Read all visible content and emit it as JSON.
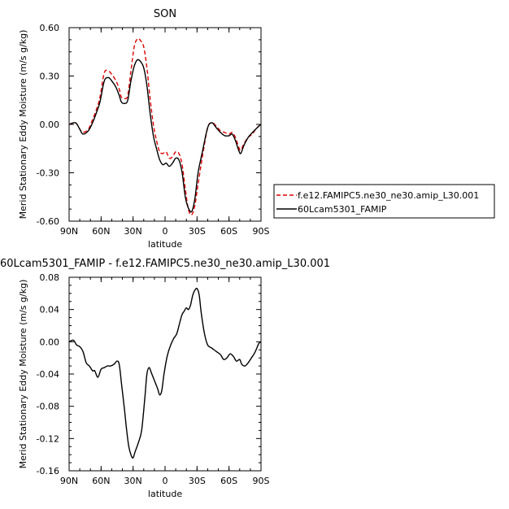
{
  "chart_data": [
    {
      "type": "line",
      "title": "SON",
      "xlabel": "latitude",
      "ylabel": "Merid Stationary Eddy Moisture (m/s g/kg)",
      "x_ticks": [
        "90N",
        "60N",
        "30N",
        "0",
        "30S",
        "60S",
        "90S"
      ],
      "y_ticks": [
        "0.60",
        "0.30",
        "0.00",
        "-0.30",
        "-0.60"
      ],
      "xlim": [
        90,
        -90
      ],
      "ylim": [
        -0.6,
        0.6
      ],
      "legend_position": "right",
      "series": [
        {
          "name": "f.e12.FAMIPC5.ne30_ne30.amip_L30.001",
          "color": "#dd0000",
          "dash": "dashed",
          "points": [
            [
              90,
              0.0
            ],
            [
              84,
              0.01
            ],
            [
              80,
              -0.03
            ],
            [
              77,
              -0.05
            ],
            [
              72,
              -0.03
            ],
            [
              68,
              0.03
            ],
            [
              64,
              0.1
            ],
            [
              61,
              0.17
            ],
            [
              57,
              0.32
            ],
            [
              53,
              0.33
            ],
            [
              50,
              0.31
            ],
            [
              46,
              0.27
            ],
            [
              43,
              0.22
            ],
            [
              41,
              0.17
            ],
            [
              38,
              0.16
            ],
            [
              35,
              0.18
            ],
            [
              32,
              0.33
            ],
            [
              29,
              0.48
            ],
            [
              26,
              0.53
            ],
            [
              23,
              0.52
            ],
            [
              20,
              0.48
            ],
            [
              17,
              0.35
            ],
            [
              14,
              0.16
            ],
            [
              11,
              0.0
            ],
            [
              8,
              -0.1
            ],
            [
              5,
              -0.17
            ],
            [
              2,
              -0.18
            ],
            [
              -1,
              -0.17
            ],
            [
              -4,
              -0.21
            ],
            [
              -7,
              -0.2
            ],
            [
              -10,
              -0.17
            ],
            [
              -13,
              -0.18
            ],
            [
              -16,
              -0.25
            ],
            [
              -19,
              -0.4
            ],
            [
              -22,
              -0.53
            ],
            [
              -25,
              -0.56
            ],
            [
              -28,
              -0.5
            ],
            [
              -31,
              -0.37
            ],
            [
              -35,
              -0.2
            ],
            [
              -40,
              -0.02
            ],
            [
              -44,
              0.01
            ],
            [
              -48,
              -0.01
            ],
            [
              -52,
              -0.04
            ],
            [
              -56,
              -0.05
            ],
            [
              -60,
              -0.06
            ],
            [
              -63,
              -0.05
            ],
            [
              -66,
              -0.08
            ],
            [
              -69,
              -0.14
            ],
            [
              -71,
              -0.16
            ],
            [
              -74,
              -0.12
            ],
            [
              -78,
              -0.08
            ],
            [
              -82,
              -0.06
            ],
            [
              -85,
              -0.03
            ],
            [
              -88,
              -0.01
            ],
            [
              -90,
              0.0
            ]
          ]
        },
        {
          "name": "60Lcam5301_FAMIP",
          "color": "#000000",
          "dash": "solid",
          "points": [
            [
              90,
              0.0
            ],
            [
              84,
              0.01
            ],
            [
              80,
              -0.03
            ],
            [
              77,
              -0.06
            ],
            [
              72,
              -0.04
            ],
            [
              68,
              0.01
            ],
            [
              64,
              0.08
            ],
            [
              61,
              0.14
            ],
            [
              57,
              0.27
            ],
            [
              53,
              0.29
            ],
            [
              50,
              0.27
            ],
            [
              46,
              0.23
            ],
            [
              43,
              0.18
            ],
            [
              41,
              0.14
            ],
            [
              38,
              0.13
            ],
            [
              35,
              0.15
            ],
            [
              32,
              0.27
            ],
            [
              29,
              0.36
            ],
            [
              26,
              0.4
            ],
            [
              23,
              0.39
            ],
            [
              20,
              0.35
            ],
            [
              17,
              0.24
            ],
            [
              14,
              0.07
            ],
            [
              11,
              -0.07
            ],
            [
              8,
              -0.15
            ],
            [
              5,
              -0.22
            ],
            [
              2,
              -0.25
            ],
            [
              -1,
              -0.24
            ],
            [
              -4,
              -0.26
            ],
            [
              -7,
              -0.24
            ],
            [
              -10,
              -0.21
            ],
            [
              -13,
              -0.22
            ],
            [
              -16,
              -0.3
            ],
            [
              -19,
              -0.45
            ],
            [
              -22,
              -0.52
            ],
            [
              -25,
              -0.54
            ],
            [
              -28,
              -0.46
            ],
            [
              -31,
              -0.3
            ],
            [
              -35,
              -0.17
            ],
            [
              -40,
              -0.02
            ],
            [
              -44,
              0.01
            ],
            [
              -48,
              -0.02
            ],
            [
              -52,
              -0.05
            ],
            [
              -56,
              -0.07
            ],
            [
              -60,
              -0.07
            ],
            [
              -63,
              -0.06
            ],
            [
              -66,
              -0.1
            ],
            [
              -69,
              -0.16
            ],
            [
              -71,
              -0.18
            ],
            [
              -74,
              -0.13
            ],
            [
              -78,
              -0.08
            ],
            [
              -82,
              -0.05
            ],
            [
              -85,
              -0.03
            ],
            [
              -88,
              -0.01
            ],
            [
              -90,
              0.0
            ]
          ]
        }
      ]
    },
    {
      "type": "line",
      "title": "60Lcam5301_FAMIP - f.e12.FAMIPC5.ne30_ne30.amip_L30.001",
      "xlabel": "latitude",
      "ylabel": "Merid Stationary Eddy Moisture (m/s g/kg)",
      "x_ticks": [
        "90N",
        "60N",
        "30N",
        "0",
        "30S",
        "60S",
        "90S"
      ],
      "y_ticks": [
        "0.08",
        "0.04",
        "0.00",
        "-0.04",
        "-0.08",
        "-0.12",
        "-0.16"
      ],
      "xlim": [
        90,
        -90
      ],
      "ylim": [
        -0.16,
        0.08
      ],
      "series": [
        {
          "color": "#000000",
          "dash": "solid",
          "points": [
            [
              90,
              0.0
            ],
            [
              86,
              0.002
            ],
            [
              83,
              -0.004
            ],
            [
              80,
              -0.006
            ],
            [
              77,
              -0.012
            ],
            [
              74,
              -0.026
            ],
            [
              71,
              -0.03
            ],
            [
              68,
              -0.036
            ],
            [
              66,
              -0.036
            ],
            [
              63,
              -0.044
            ],
            [
              60,
              -0.034
            ],
            [
              57,
              -0.032
            ],
            [
              54,
              -0.03
            ],
            [
              51,
              -0.03
            ],
            [
              48,
              -0.028
            ],
            [
              45,
              -0.024
            ],
            [
              43,
              -0.028
            ],
            [
              41,
              -0.05
            ],
            [
              38,
              -0.085
            ],
            [
              36,
              -0.11
            ],
            [
              34,
              -0.13
            ],
            [
              32,
              -0.14
            ],
            [
              30,
              -0.144
            ],
            [
              28,
              -0.136
            ],
            [
              25,
              -0.125
            ],
            [
              22,
              -0.11
            ],
            [
              19,
              -0.07
            ],
            [
              17,
              -0.04
            ],
            [
              15,
              -0.032
            ],
            [
              13,
              -0.038
            ],
            [
              10,
              -0.048
            ],
            [
              7,
              -0.058
            ],
            [
              5,
              -0.066
            ],
            [
              3,
              -0.06
            ],
            [
              1,
              -0.04
            ],
            [
              -2,
              -0.018
            ],
            [
              -5,
              -0.005
            ],
            [
              -8,
              0.004
            ],
            [
              -11,
              0.01
            ],
            [
              -14,
              0.025
            ],
            [
              -16,
              0.034
            ],
            [
              -18,
              0.038
            ],
            [
              -20,
              0.042
            ],
            [
              -22,
              0.04
            ],
            [
              -24,
              0.046
            ],
            [
              -26,
              0.058
            ],
            [
              -28,
              0.064
            ],
            [
              -30,
              0.066
            ],
            [
              -32,
              0.058
            ],
            [
              -34,
              0.035
            ],
            [
              -37,
              0.01
            ],
            [
              -40,
              -0.004
            ],
            [
              -44,
              -0.008
            ],
            [
              -48,
              -0.012
            ],
            [
              -52,
              -0.016
            ],
            [
              -55,
              -0.022
            ],
            [
              -58,
              -0.02
            ],
            [
              -61,
              -0.015
            ],
            [
              -64,
              -0.018
            ],
            [
              -67,
              -0.024
            ],
            [
              -70,
              -0.022
            ],
            [
              -72,
              -0.028
            ],
            [
              -75,
              -0.03
            ],
            [
              -78,
              -0.026
            ],
            [
              -81,
              -0.02
            ],
            [
              -84,
              -0.014
            ],
            [
              -86,
              -0.008
            ],
            [
              -88,
              -0.002
            ],
            [
              -90,
              0.0
            ]
          ]
        }
      ]
    }
  ]
}
